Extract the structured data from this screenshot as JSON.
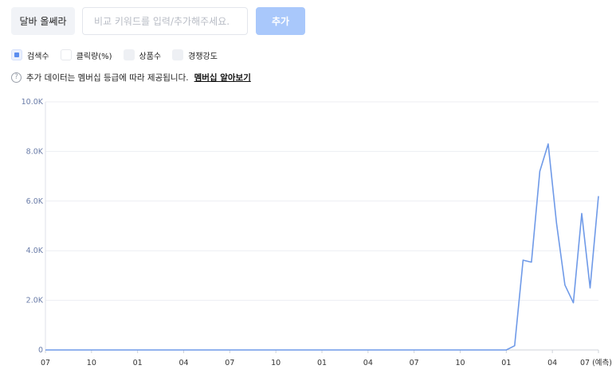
{
  "toolbar": {
    "keyword_label": "달바 올쎄라",
    "search_placeholder": "비교 키워드를 입력/추가해주세요.",
    "add_label": "추가"
  },
  "legend": {
    "items": [
      {
        "label": "검색수",
        "checked": true
      },
      {
        "label": "클릭량(%)",
        "checked": false
      },
      {
        "label": "상품수",
        "checked": false
      },
      {
        "label": "경쟁강도",
        "checked": false
      }
    ]
  },
  "notice": {
    "help_icon": "question-circle-icon",
    "text": "추가 데이터는 멤버십 등급에 따라 제공됩니다.",
    "link_label": "멤버십 알아보기"
  },
  "colors": {
    "line": "#6f9ae8",
    "grid": "#eceef2",
    "accent_button": "#a9c8fb"
  },
  "chart_data": {
    "type": "line",
    "x_tick_labels": [
      "07",
      "10",
      "01",
      "04",
      "07",
      "10",
      "01",
      "04",
      "07",
      "10",
      "01",
      "04",
      "07 (예측)"
    ],
    "y_tick_labels": [
      "0",
      "2.0K",
      "4.0K",
      "6.0K",
      "8.0K",
      "10.0K"
    ],
    "ylim": [
      0,
      10000
    ],
    "grid": true,
    "series": [
      {
        "values": [
          0,
          0,
          0,
          0,
          0,
          0,
          0,
          0,
          0,
          0,
          0,
          0,
          0,
          0,
          0,
          0,
          0,
          0,
          0,
          0,
          0,
          0,
          0,
          0,
          0,
          0,
          0,
          0,
          0,
          0,
          0,
          0,
          0,
          0,
          0,
          0,
          0,
          0,
          0,
          0,
          0,
          0,
          0,
          0,
          0,
          0,
          0,
          0,
          0,
          0,
          0,
          0,
          0,
          0,
          0,
          0,
          170,
          3620,
          3540,
          7200,
          8300,
          5100,
          2620,
          1900,
          5500,
          2500,
          6200
        ]
      }
    ]
  }
}
